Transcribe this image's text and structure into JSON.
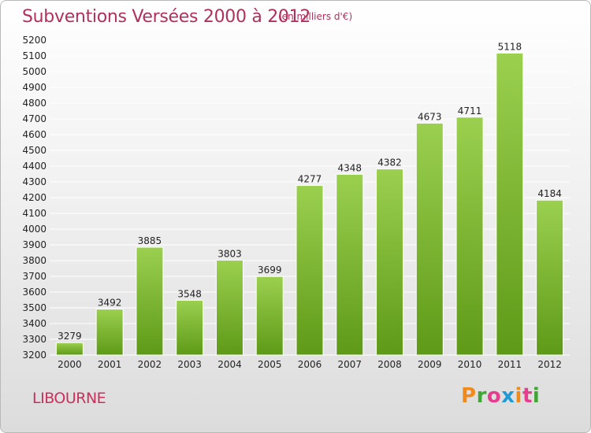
{
  "header": {
    "title": "Subventions Versées 2000 à 2012",
    "subtitle": "(en milliers d'€)"
  },
  "footer": {
    "place": "LIBOURNE",
    "brand": {
      "letters": [
        "P",
        "r",
        "o",
        "x",
        "i",
        "t",
        "i"
      ],
      "colors": [
        "#f08a1c",
        "#3fa535",
        "#e73d8e",
        "#1f9ad6",
        "#f08a1c",
        "#e73d8e",
        "#3fa535"
      ]
    }
  },
  "colors": {
    "bar_top": "#9bd04f",
    "bar_bottom": "#5e9a17",
    "grid": "#ffffff"
  },
  "chart_data": {
    "type": "bar",
    "categories": [
      "2000",
      "2001",
      "2002",
      "2003",
      "2004",
      "2005",
      "2006",
      "2007",
      "2008",
      "2009",
      "2010",
      "2011",
      "2012"
    ],
    "values": [
      3279,
      3492,
      3885,
      3548,
      3803,
      3699,
      4277,
      4348,
      4382,
      4673,
      4711,
      5118,
      4184
    ],
    "ylim": [
      3200,
      5200
    ],
    "ytick_step": 100,
    "grid": true,
    "title": "Subventions Versées 2000 à 2012",
    "xlabel": "",
    "ylabel": ""
  }
}
